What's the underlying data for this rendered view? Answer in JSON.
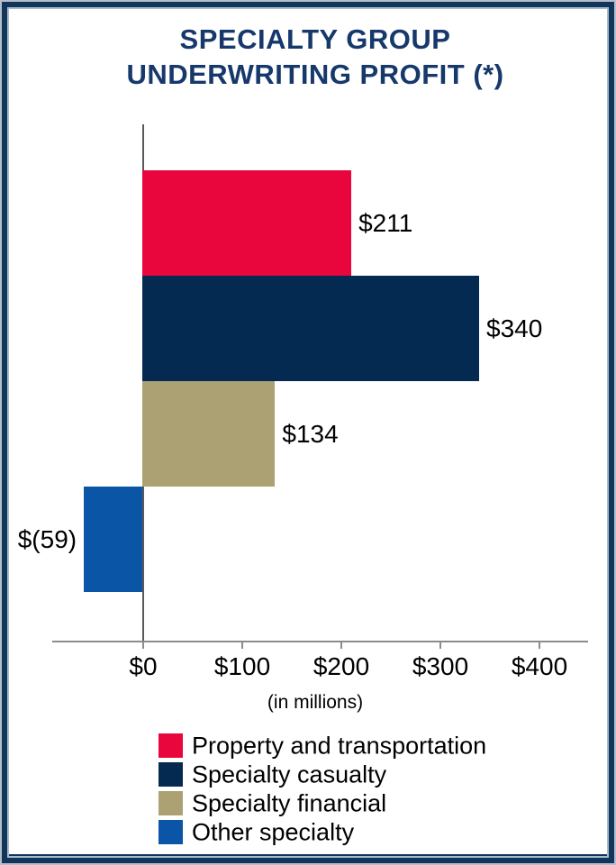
{
  "title": {
    "line1": "SPECIALTY GROUP",
    "line2": "UNDERWRITING PROFIT (*)",
    "color": "#16386B"
  },
  "chart_data": {
    "type": "bar",
    "orientation": "horizontal",
    "title": "SPECIALTY GROUP UNDERWRITING PROFIT (*)",
    "categories": [
      "Property and transportation",
      "Specialty casualty",
      "Specialty financial",
      "Other specialty"
    ],
    "values": [
      211,
      340,
      134,
      -59
    ],
    "value_labels": [
      "$211",
      "$340",
      "$134",
      "$(59)"
    ],
    "bar_colors": [
      "#e8063c",
      "#052a52",
      "#aba172",
      "#0b55a6"
    ],
    "x_tick_values": [
      0,
      100,
      200,
      300,
      400
    ],
    "x_tick_labels": [
      "$0",
      "$100",
      "$200",
      "$300",
      "$400"
    ],
    "xlim": [
      -91,
      450
    ],
    "axis_note": "(in millions)",
    "grid": false,
    "legend_position": "bottom",
    "legend": [
      {
        "label": "Property and transportation",
        "color": "#e8063c"
      },
      {
        "label": "Specialty casualty",
        "color": "#052a52"
      },
      {
        "label": "Specialty financial",
        "color": "#aba172"
      },
      {
        "label": "Other specialty",
        "color": "#0b55a6"
      }
    ]
  },
  "colors": {
    "frame_border": "#12365b",
    "frame_outer_line": "#b6bfc9",
    "frame_inner_line": "#a9bacb",
    "x_axis": "#8c8c8c",
    "y_axis": "#595959",
    "background": "#ffffff",
    "label_text": "#000000"
  }
}
